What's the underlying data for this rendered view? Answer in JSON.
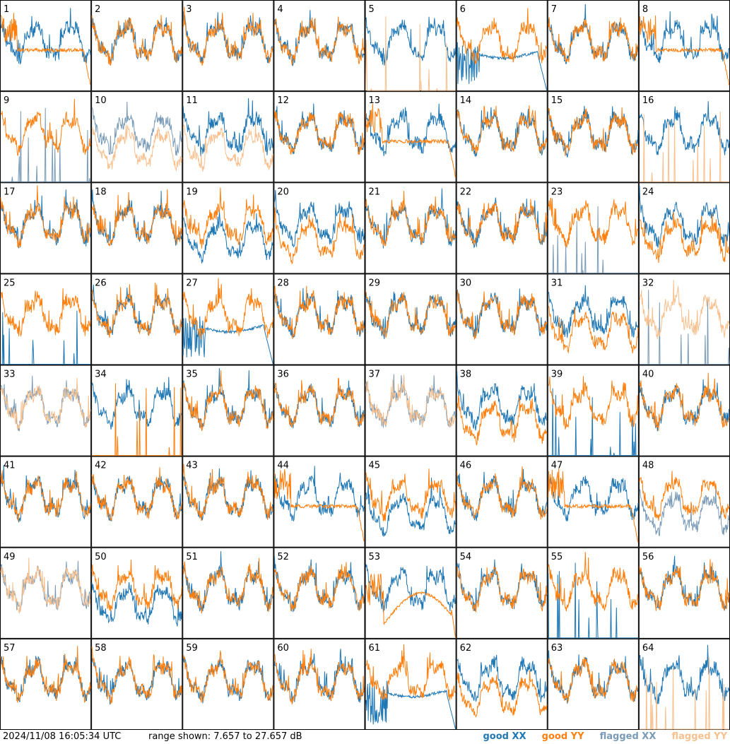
{
  "timestamp": "2024/11/08 16:05:34 UTC",
  "range_text": "range shown: 7.657 to 27.657 dB",
  "colors": {
    "good_xx": "#1f77b4",
    "good_yy": "#ff7f0e",
    "flagged_xx": "#7a9bb8",
    "flagged_yy": "#f7c08e"
  },
  "legend": {
    "good_xx": "good XX",
    "good_yy": "good YY",
    "flagged_xx": "flagged XX",
    "flagged_yy": "flagged YY"
  },
  "chart_data": {
    "type": "line",
    "layout": "8x8 small multiples (panels 1-64)",
    "y_range_db": [
      7.657,
      27.657
    ],
    "panels": [
      {
        "label": "1",
        "xx": "normal",
        "yy": "flat",
        "xx_flagged": false,
        "yy_flagged": false
      },
      {
        "label": "2",
        "xx": "normal",
        "yy": "normal",
        "xx_flagged": false,
        "yy_flagged": false
      },
      {
        "label": "3",
        "xx": "normal",
        "yy": "normal",
        "xx_flagged": false,
        "yy_flagged": false
      },
      {
        "label": "4",
        "xx": "normal",
        "yy": "normal",
        "xx_flagged": false,
        "yy_flagged": false
      },
      {
        "label": "5",
        "xx": "normal",
        "yy": "spikes",
        "xx_flagged": false,
        "yy_flagged": true
      },
      {
        "label": "6",
        "xx": "decay",
        "yy": "normal",
        "xx_flagged": false,
        "yy_flagged": false
      },
      {
        "label": "7",
        "xx": "normal",
        "yy": "normal",
        "xx_flagged": false,
        "yy_flagged": false
      },
      {
        "label": "8",
        "xx": "normal",
        "yy": "flat",
        "xx_flagged": false,
        "yy_flagged": false
      },
      {
        "label": "9",
        "xx": "spikes",
        "yy": "normal",
        "xx_flagged": true,
        "yy_flagged": false
      },
      {
        "label": "10",
        "xx": "normal",
        "yy": "low",
        "xx_flagged": true,
        "yy_flagged": true
      },
      {
        "label": "11",
        "xx": "normal",
        "yy": "low",
        "xx_flagged": false,
        "yy_flagged": true
      },
      {
        "label": "12",
        "xx": "normal",
        "yy": "normal",
        "xx_flagged": false,
        "yy_flagged": false
      },
      {
        "label": "13",
        "xx": "normal",
        "yy": "flat",
        "xx_flagged": false,
        "yy_flagged": false
      },
      {
        "label": "14",
        "xx": "normal",
        "yy": "normal",
        "xx_flagged": false,
        "yy_flagged": false
      },
      {
        "label": "15",
        "xx": "normal",
        "yy": "normal",
        "xx_flagged": false,
        "yy_flagged": false
      },
      {
        "label": "16",
        "xx": "normal",
        "yy": "spikes",
        "xx_flagged": false,
        "yy_flagged": true
      },
      {
        "label": "17",
        "xx": "normal",
        "yy": "normal",
        "xx_flagged": false,
        "yy_flagged": false
      },
      {
        "label": "18",
        "xx": "normal",
        "yy": "normal",
        "xx_flagged": false,
        "yy_flagged": false
      },
      {
        "label": "19",
        "xx": "low",
        "yy": "normal",
        "xx_flagged": false,
        "yy_flagged": false
      },
      {
        "label": "20",
        "xx": "normal",
        "yy": "low",
        "xx_flagged": false,
        "yy_flagged": false
      },
      {
        "label": "21",
        "xx": "normal",
        "yy": "normal",
        "xx_flagged": false,
        "yy_flagged": false
      },
      {
        "label": "22",
        "xx": "normal",
        "yy": "normal",
        "xx_flagged": false,
        "yy_flagged": false
      },
      {
        "label": "23",
        "xx": "spikes",
        "yy": "normal",
        "xx_flagged": true,
        "yy_flagged": false
      },
      {
        "label": "24",
        "xx": "normal",
        "yy": "low",
        "xx_flagged": false,
        "yy_flagged": false
      },
      {
        "label": "25",
        "xx": "spikes",
        "yy": "normal",
        "xx_flagged": false,
        "yy_flagged": false
      },
      {
        "label": "26",
        "xx": "normal",
        "yy": "normal",
        "xx_flagged": false,
        "yy_flagged": false
      },
      {
        "label": "27",
        "xx": "decay",
        "yy": "normal",
        "xx_flagged": false,
        "yy_flagged": false
      },
      {
        "label": "28",
        "xx": "normal",
        "yy": "normal",
        "xx_flagged": false,
        "yy_flagged": false
      },
      {
        "label": "29",
        "xx": "normal",
        "yy": "normal",
        "xx_flagged": false,
        "yy_flagged": false
      },
      {
        "label": "30",
        "xx": "normal",
        "yy": "normal",
        "xx_flagged": false,
        "yy_flagged": false
      },
      {
        "label": "31",
        "xx": "normal",
        "yy": "low",
        "xx_flagged": false,
        "yy_flagged": false
      },
      {
        "label": "32",
        "xx": "spikes",
        "yy": "normal",
        "xx_flagged": true,
        "yy_flagged": true
      },
      {
        "label": "33",
        "xx": "normal",
        "yy": "normal",
        "xx_flagged": true,
        "yy_flagged": true
      },
      {
        "label": "34",
        "xx": "normal",
        "yy": "spikes",
        "xx_flagged": false,
        "yy_flagged": false
      },
      {
        "label": "35",
        "xx": "normal",
        "yy": "normal",
        "xx_flagged": false,
        "yy_flagged": false
      },
      {
        "label": "36",
        "xx": "normal",
        "yy": "normal",
        "xx_flagged": false,
        "yy_flagged": false
      },
      {
        "label": "37",
        "xx": "normal",
        "yy": "normal",
        "xx_flagged": true,
        "yy_flagged": true
      },
      {
        "label": "38",
        "xx": "normal",
        "yy": "low",
        "xx_flagged": false,
        "yy_flagged": false
      },
      {
        "label": "39",
        "xx": "spikes",
        "yy": "normal",
        "xx_flagged": false,
        "yy_flagged": false
      },
      {
        "label": "40",
        "xx": "normal",
        "yy": "normal",
        "xx_flagged": false,
        "yy_flagged": false
      },
      {
        "label": "41",
        "xx": "normal",
        "yy": "normal",
        "xx_flagged": false,
        "yy_flagged": false
      },
      {
        "label": "42",
        "xx": "normal",
        "yy": "normal",
        "xx_flagged": false,
        "yy_flagged": false
      },
      {
        "label": "43",
        "xx": "normal",
        "yy": "normal",
        "xx_flagged": false,
        "yy_flagged": false
      },
      {
        "label": "44",
        "xx": "normal",
        "yy": "flat",
        "xx_flagged": false,
        "yy_flagged": false
      },
      {
        "label": "45",
        "xx": "low",
        "yy": "normal",
        "xx_flagged": false,
        "yy_flagged": false
      },
      {
        "label": "46",
        "xx": "normal",
        "yy": "normal",
        "xx_flagged": false,
        "yy_flagged": false
      },
      {
        "label": "47",
        "xx": "normal",
        "yy": "flat",
        "xx_flagged": false,
        "yy_flagged": false
      },
      {
        "label": "48",
        "xx": "low",
        "yy": "normal",
        "xx_flagged": true,
        "yy_flagged": false
      },
      {
        "label": "49",
        "xx": "normal",
        "yy": "normal",
        "xx_flagged": true,
        "yy_flagged": true
      },
      {
        "label": "50",
        "xx": "low",
        "yy": "normal",
        "xx_flagged": false,
        "yy_flagged": false
      },
      {
        "label": "51",
        "xx": "normal",
        "yy": "normal",
        "xx_flagged": false,
        "yy_flagged": false
      },
      {
        "label": "52",
        "xx": "normal",
        "yy": "normal",
        "xx_flagged": false,
        "yy_flagged": false
      },
      {
        "label": "53",
        "xx": "normal",
        "yy": "bump",
        "xx_flagged": false,
        "yy_flagged": false
      },
      {
        "label": "54",
        "xx": "normal",
        "yy": "normal",
        "xx_flagged": false,
        "yy_flagged": false
      },
      {
        "label": "55",
        "xx": "spikes",
        "yy": "normal",
        "xx_flagged": false,
        "yy_flagged": false
      },
      {
        "label": "56",
        "xx": "normal",
        "yy": "normal",
        "xx_flagged": false,
        "yy_flagged": false
      },
      {
        "label": "57",
        "xx": "normal",
        "yy": "normal",
        "xx_flagged": false,
        "yy_flagged": false
      },
      {
        "label": "58",
        "xx": "normal",
        "yy": "normal",
        "xx_flagged": false,
        "yy_flagged": false
      },
      {
        "label": "59",
        "xx": "normal",
        "yy": "normal",
        "xx_flagged": false,
        "yy_flagged": false
      },
      {
        "label": "60",
        "xx": "normal",
        "yy": "normal",
        "xx_flagged": false,
        "yy_flagged": false
      },
      {
        "label": "61",
        "xx": "decay",
        "yy": "normal",
        "xx_flagged": false,
        "yy_flagged": false
      },
      {
        "label": "62",
        "xx": "normal",
        "yy": "low",
        "xx_flagged": false,
        "yy_flagged": false
      },
      {
        "label": "63",
        "xx": "normal",
        "yy": "normal",
        "xx_flagged": false,
        "yy_flagged": false
      },
      {
        "label": "64",
        "xx": "normal",
        "yy": "spikes",
        "xx_flagged": false,
        "yy_flagged": true
      }
    ]
  }
}
